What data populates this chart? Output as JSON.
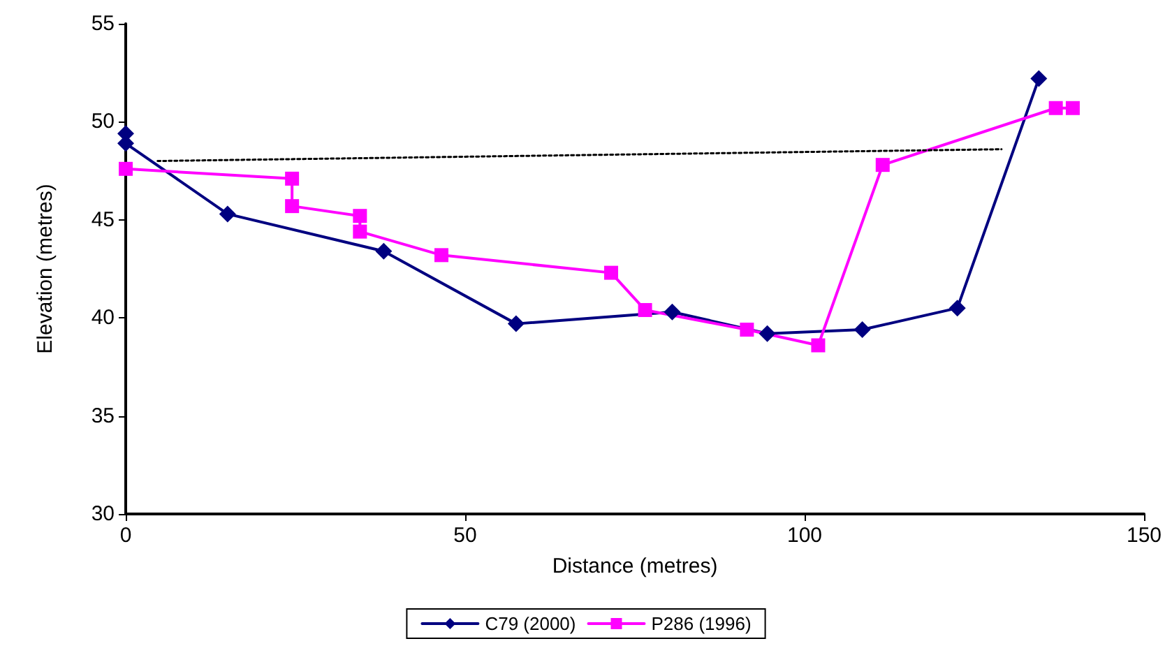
{
  "chart_data": {
    "type": "line",
    "xlabel": "Distance (metres)",
    "ylabel": "Elevation (metres)",
    "xlim": [
      0,
      150
    ],
    "xticks": [
      0,
      50,
      100,
      150
    ],
    "ylim": [
      30,
      55
    ],
    "yticks": [
      30,
      35,
      40,
      45,
      50,
      55
    ],
    "grid": false,
    "legend": "bottom",
    "series": [
      {
        "name": "C79 (2000)",
        "color": "#000080",
        "marker": "diamond",
        "x": [
          0,
          0,
          15,
          38,
          57.5,
          80.5,
          94.5,
          108.5,
          122.5,
          134.5
        ],
        "values": [
          49.4,
          48.9,
          45.3,
          43.4,
          39.7,
          40.3,
          39.2,
          39.4,
          40.5,
          52.2
        ]
      },
      {
        "name": "P286 (1996)",
        "color": "#ff00ff",
        "marker": "square",
        "x": [
          0,
          24.5,
          24.5,
          34.5,
          34.5,
          46.5,
          71.5,
          76.5,
          91.5,
          102,
          111.5,
          137,
          139.5
        ],
        "values": [
          47.6,
          47.1,
          45.7,
          45.2,
          44.4,
          43.2,
          42.3,
          40.4,
          39.4,
          38.6,
          47.8,
          50.7,
          50.7
        ]
      },
      {
        "color": "#000000",
        "marker": "none",
        "line_style": "dotted",
        "x": [
          4.7,
          129
        ],
        "values": [
          48,
          48.6
        ]
      }
    ]
  }
}
